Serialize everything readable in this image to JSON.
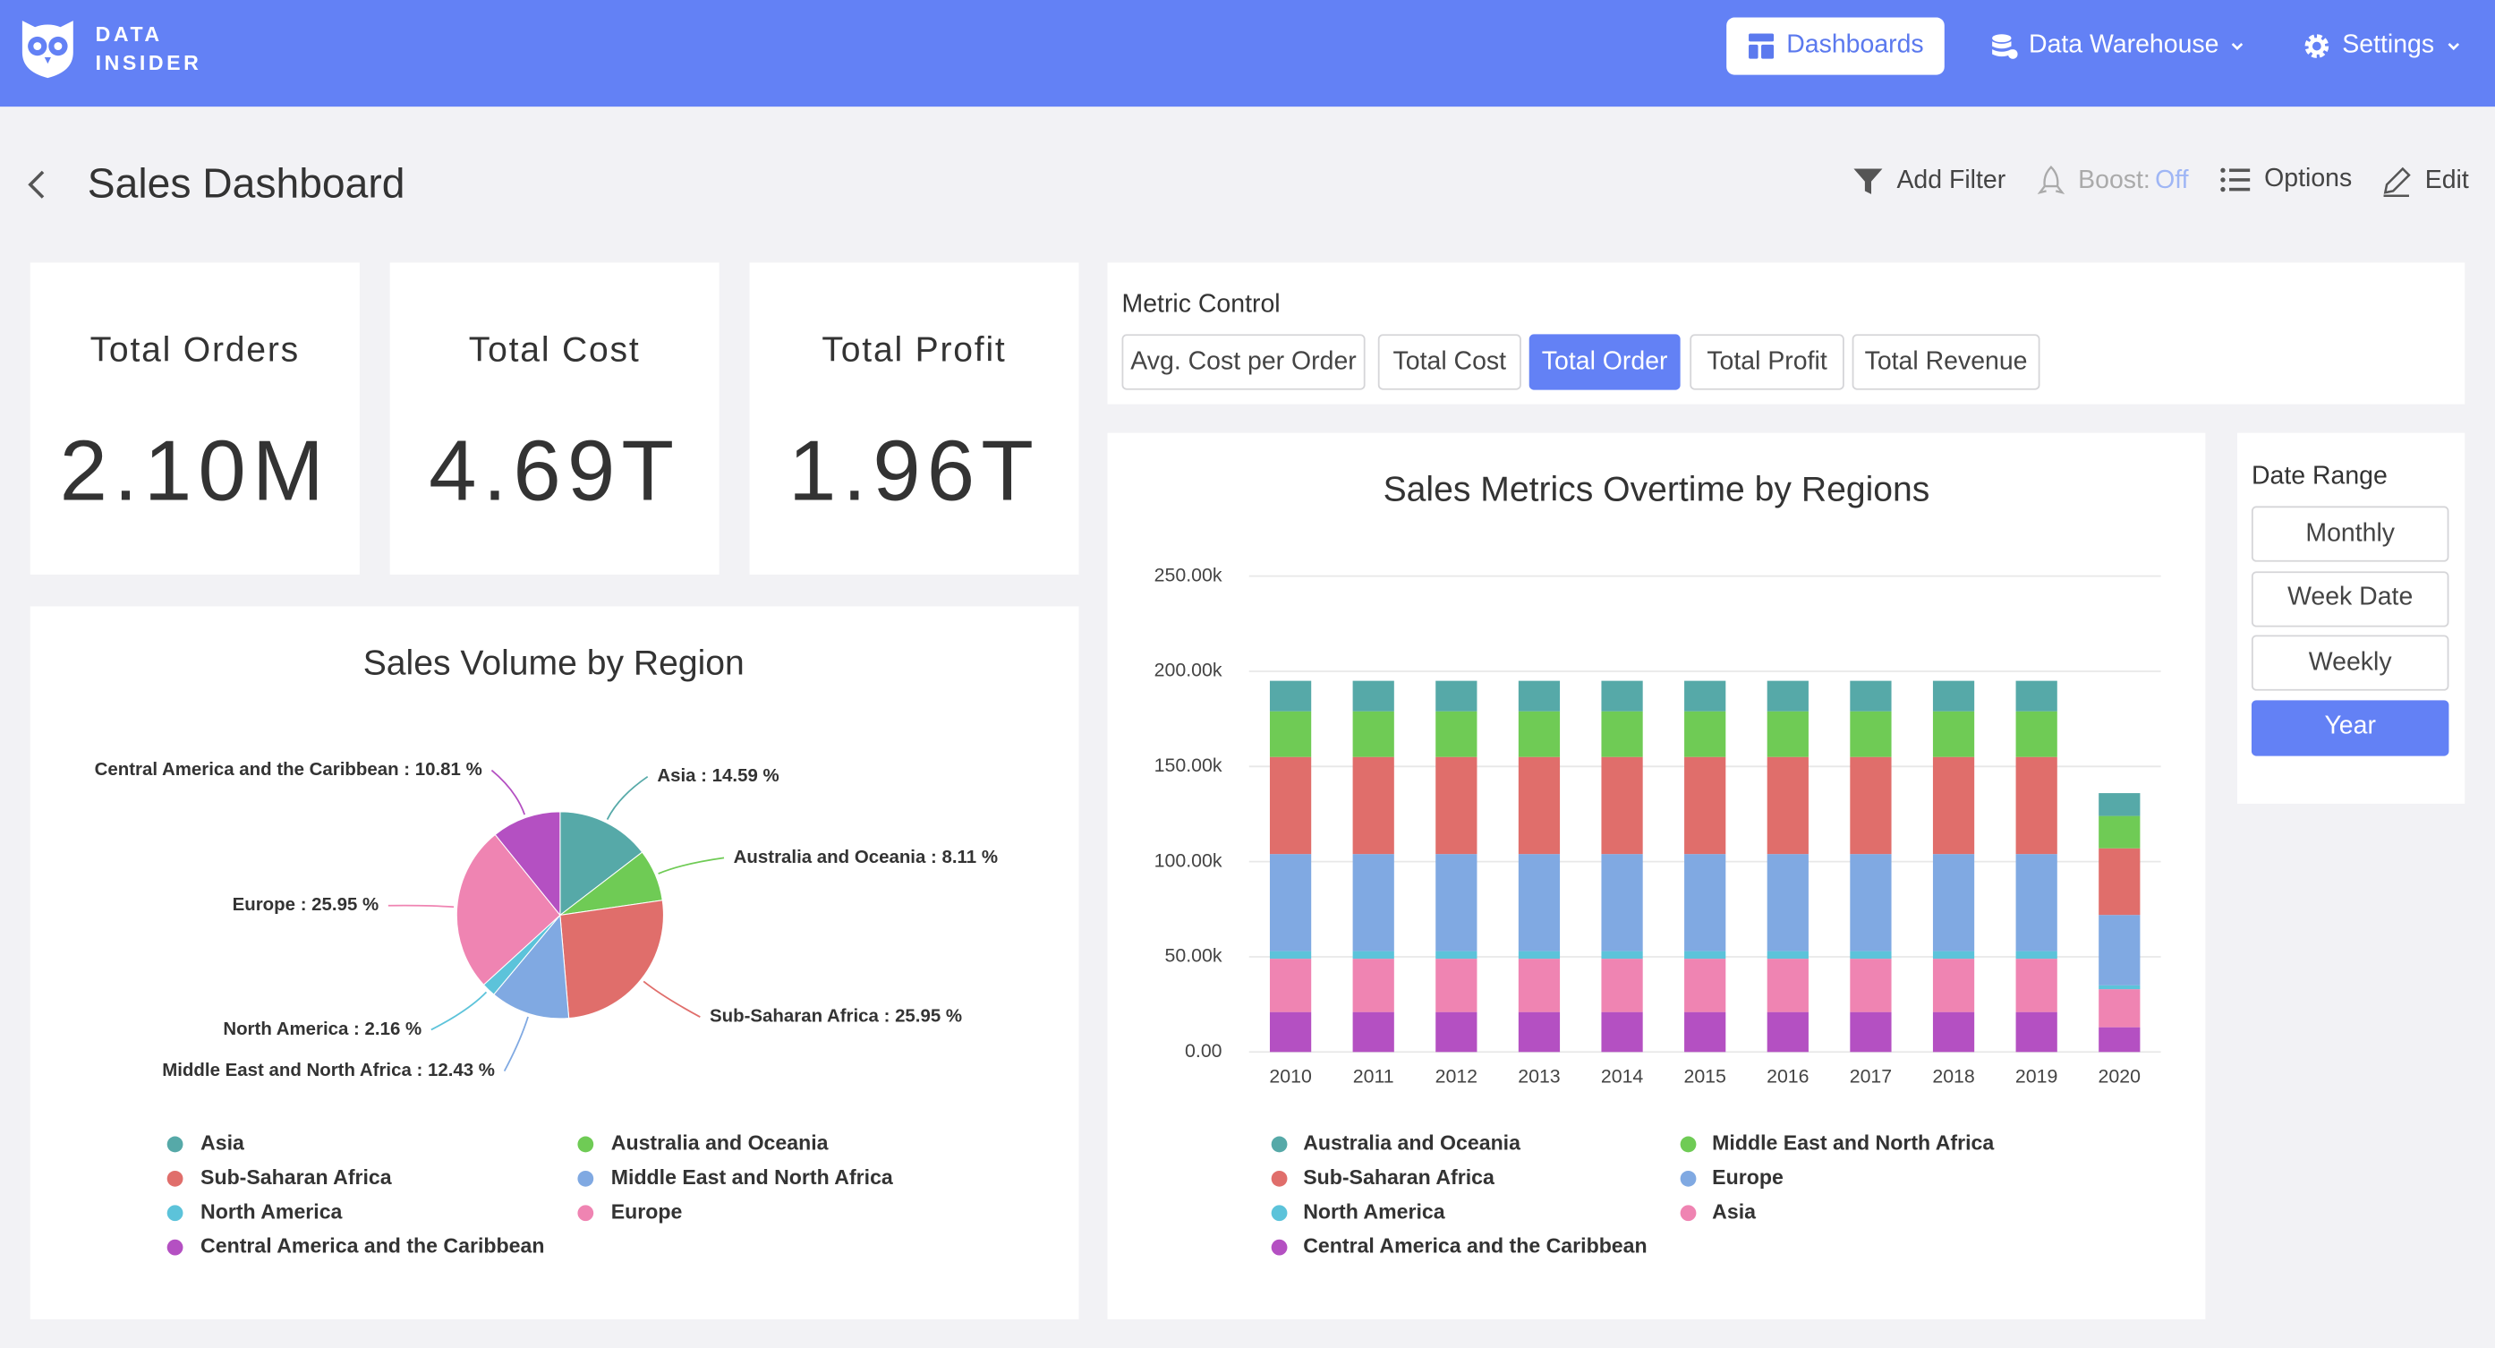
{
  "header": {
    "brand": [
      "DATA",
      "INSIDER"
    ],
    "nav": [
      "Dashboards",
      "Data Warehouse",
      "Settings"
    ],
    "active": 0
  },
  "page": {
    "title": "Sales Dashboard",
    "toolbar": {
      "add_filter": "Add Filter",
      "boost": "Boost:",
      "boost_state": "Off",
      "options": "Options",
      "edit": "Edit"
    }
  },
  "kpis": [
    {
      "label": "Total Orders",
      "value": "2.10M"
    },
    {
      "label": "Total Cost",
      "value": "4.69T"
    },
    {
      "label": "Total Profit",
      "value": "1.96T"
    }
  ],
  "metric_control": {
    "title": "Metric Control",
    "options": [
      "Avg. Cost per Order",
      "Total Cost",
      "Total Order",
      "Total Profit",
      "Total Revenue"
    ],
    "active": 2
  },
  "date_range": {
    "title": "Date Range",
    "options": [
      "Monthly",
      "Week Date",
      "Weekly",
      "Year"
    ],
    "active": 3
  },
  "chart_data": [
    {
      "type": "pie",
      "title": "Sales Volume by Region",
      "categories": [
        "Asia",
        "Australia and Oceania",
        "Sub-Saharan Africa",
        "Middle East and North Africa",
        "North America",
        "Europe",
        "Central America and the Caribbean"
      ],
      "values": [
        14.59,
        8.11,
        25.95,
        12.43,
        2.16,
        25.95,
        10.81
      ],
      "value_labels": [
        "Asia : 14.59 %",
        "Australia and Oceania : 8.11 %",
        "Sub-Saharan Africa : 25.95 %",
        "Middle East and North Africa : 12.43 %",
        "North America : 2.16 %",
        "Europe : 25.95 %",
        "Central America and the Caribbean : 10.81 %"
      ],
      "colors": [
        "#56a9a8",
        "#6fcb55",
        "#e06e6b",
        "#80a9e2",
        "#5cc3da",
        "#ef84b2",
        "#b450c2"
      ]
    },
    {
      "type": "bar",
      "stacked": true,
      "title": "Sales Metrics Overtime by Regions",
      "categories": [
        "2010",
        "2011",
        "2012",
        "2013",
        "2014",
        "2015",
        "2016",
        "2017",
        "2018",
        "2019",
        "2020"
      ],
      "series": [
        {
          "name": "Australia and Oceania",
          "color": "#56a9a8",
          "values": [
            16000,
            16000,
            16000,
            16000,
            16000,
            16000,
            16000,
            16000,
            16000,
            16000,
            12000
          ]
        },
        {
          "name": "Middle East and North Africa",
          "color": "#6fcb55",
          "values": [
            24000,
            24000,
            24000,
            24000,
            24000,
            24000,
            24000,
            24000,
            24000,
            24000,
            17000
          ]
        },
        {
          "name": "Sub-Saharan Africa",
          "color": "#e06e6b",
          "values": [
            51000,
            51000,
            51000,
            51000,
            51000,
            51000,
            51000,
            51000,
            51000,
            51000,
            35000
          ]
        },
        {
          "name": "Europe",
          "color": "#80a9e2",
          "values": [
            51000,
            51000,
            51000,
            51000,
            51000,
            51000,
            51000,
            51000,
            51000,
            51000,
            37000
          ]
        },
        {
          "name": "North America",
          "color": "#5cc3da",
          "values": [
            4000,
            4000,
            4000,
            4000,
            4000,
            4000,
            4000,
            4000,
            4000,
            4000,
            2000
          ]
        },
        {
          "name": "Asia",
          "color": "#ef84b2",
          "values": [
            28000,
            28000,
            28000,
            28000,
            28000,
            28000,
            28000,
            28000,
            28000,
            28000,
            20000
          ]
        },
        {
          "name": "Central America and the Caribbean",
          "color": "#b450c2",
          "values": [
            21000,
            21000,
            21000,
            21000,
            21000,
            21000,
            21000,
            21000,
            21000,
            21000,
            13000
          ]
        }
      ],
      "ylim": [
        0,
        250000
      ],
      "yticks": [
        {
          "value": 0,
          "label": "0.00"
        },
        {
          "value": 50000,
          "label": "50.00k"
        },
        {
          "value": 100000,
          "label": "100.00k"
        },
        {
          "value": 150000,
          "label": "150.00k"
        },
        {
          "value": 200000,
          "label": "200.00k"
        },
        {
          "value": 250000,
          "label": "250.00k"
        }
      ],
      "grid": true
    }
  ]
}
